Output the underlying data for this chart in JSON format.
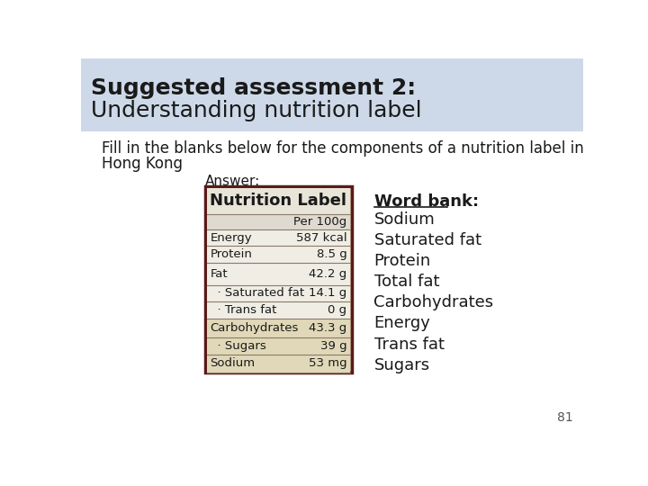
{
  "slide_bg": "#ffffff",
  "header_bg": "#cdd9e8",
  "title_line1": "Suggested assessment 2:",
  "title_line2": "Understanding nutrition label",
  "title_fontsize": 18,
  "body_text_line1": "Fill in the blanks below for the components of a nutrition label in",
  "body_text_line2": "Hong Kong",
  "body_fontsize": 12,
  "answer_label": "Answer:",
  "answer_fontsize": 11,
  "word_bank_title": "Word bank:",
  "word_bank_items": [
    "Sodium",
    "Saturated fat",
    "Protein",
    "Total fat",
    "Carbohydrates",
    "Energy",
    "Trans fat",
    "Sugars"
  ],
  "word_bank_fontsize": 13,
  "page_number": "81",
  "nutrition_label_title": "Nutrition Label",
  "nutrition_rows": [
    {
      "label": "",
      "value": "Per 100g",
      "indent": false
    },
    {
      "label": "Energy",
      "value": "587 kcal",
      "indent": false
    },
    {
      "label": "Protein",
      "value": "8.5 g",
      "indent": false
    },
    {
      "label": "Fat",
      "value": "42.2 g",
      "indent": false
    },
    {
      "label": "  · Saturated fat",
      "value": "14.1 g",
      "indent": true
    },
    {
      "label": "  · Trans fat",
      "value": "0 g",
      "indent": true
    },
    {
      "label": "Carbohydrates",
      "value": "43.3 g",
      "indent": false
    },
    {
      "label": "  · Sugars",
      "value": "39 g",
      "indent": true
    },
    {
      "label": "Sodium",
      "value": "53 mg",
      "indent": false
    }
  ],
  "nl_row_colors": [
    "#dedad0",
    "#f0ede5",
    "#f0ede5",
    "#f0ede5",
    "#f0ede5",
    "#f0ede5",
    "#e0d8b8",
    "#e0d8b8",
    "#e0d8b8"
  ],
  "nl_row_heights": [
    22,
    24,
    24,
    32,
    24,
    24,
    28,
    24,
    26
  ]
}
